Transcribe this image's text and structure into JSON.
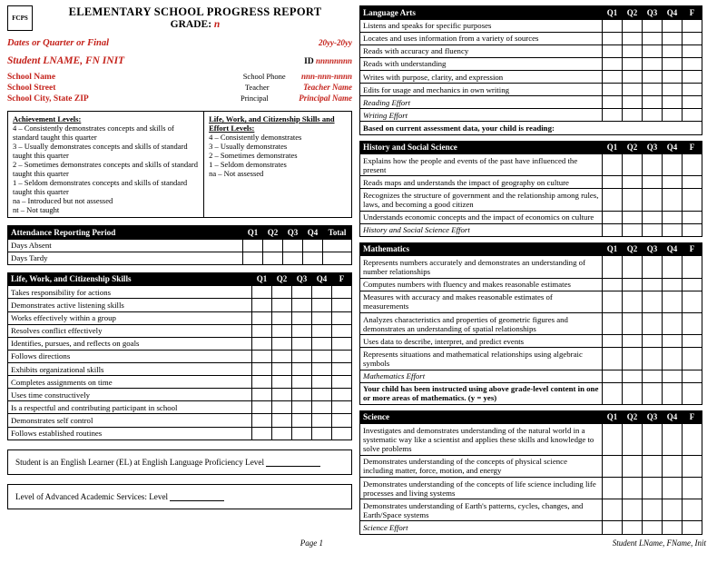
{
  "logo_text": "FCPS",
  "title_line1": "ELEMENTARY SCHOOL PROGRESS REPORT",
  "title_line2_prefix": "GRADE: ",
  "title_line2_grade": "n",
  "dates_label": "Dates or Quarter or Final",
  "year_range": "20yy-20yy",
  "student_name": "Student LNAME, FN INIT",
  "id_label": "ID",
  "id_value": "nnnnnnnn",
  "school": {
    "name": "School Name",
    "street": "School Street",
    "csz": "School City, State ZIP",
    "phone_label": "School Phone",
    "phone": "nnn-nnn-nnnn",
    "teacher_label": "Teacher",
    "teacher": "Teacher Name",
    "principal_label": "Principal",
    "principal": "Principal Name"
  },
  "achievement": {
    "heading": "Achievement Levels:",
    "l4": "4 – Consistently demonstrates concepts and skills of standard taught this quarter",
    "l3": "3 – Usually demonstrates concepts and skills of standard taught this quarter",
    "l2": "2 – Sometimes demonstrates concepts and skills of standard taught this quarter",
    "l1": "1 – Seldom demonstrates concepts and skills of standard taught this quarter",
    "na": "na – Introduced but not assessed",
    "nt": "nt – Not taught"
  },
  "effort": {
    "heading": "Life, Work, and Citizenship Skills and Effort Levels:",
    "l4": "4 – Consistently demonstrates",
    "l3": "3 – Usually demonstrates",
    "l2": "2 – Sometimes demonstrates",
    "l1": "1 – Seldom demonstrates",
    "na": "na – Not assessed"
  },
  "q_headers": {
    "q1": "Q1",
    "q2": "Q2",
    "q3": "Q3",
    "q4": "Q4",
    "f": "F",
    "total": "Total"
  },
  "attendance": {
    "title": "Attendance Reporting Period",
    "rows": [
      "Days Absent",
      "Days Tardy"
    ]
  },
  "citizenship": {
    "title": "Life, Work, and Citizenship Skills",
    "rows": [
      "Takes responsibility for actions",
      "Demonstrates active listening skills",
      "Works effectively within a group",
      "Resolves conflict effectively",
      "Identifies, pursues, and reflects on goals",
      "Follows directions",
      "Exhibits organizational skills",
      "Completes assignments on time",
      "Uses time constructively",
      "Is a respectful and contributing participant in school",
      "Demonstrates self control",
      "Follows established routines"
    ]
  },
  "el_note": "Student is an English Learner (EL) at English Language Proficiency Level ",
  "aas_note": "Level of Advanced Academic Services:  Level ",
  "la": {
    "title": "Language Arts",
    "rows": [
      "Listens and speaks for specific purposes",
      "Locates and uses information from a variety of sources",
      "Reads with accuracy and fluency",
      "Reads with understanding",
      "Writes with purpose, clarity, and expression",
      "Edits for usage and mechanics in own writing"
    ],
    "effort1": "Reading Effort",
    "effort2": "Writing Effort",
    "footer": "Based on current assessment data, your child is reading:"
  },
  "hss": {
    "title": "History and Social Science",
    "rows": [
      "Explains how the people and events of the past have influenced the present",
      "Reads maps and understands the impact of geography on culture",
      "Recognizes the structure of government and the relationship among rules, laws, and becoming a good citizen",
      "Understands economic concepts and the impact of economics on culture"
    ],
    "effort": "History and Social Science Effort"
  },
  "math": {
    "title": "Mathematics",
    "rows": [
      "Represents numbers accurately and demonstrates an understanding of number relationships",
      "Computes numbers with fluency and makes reasonable estimates",
      "Measures with accuracy and makes reasonable estimates of measurements",
      "Analyzes characteristics and properties of geometric figures and demonstrates an understanding of spatial relationships",
      "Uses data to describe, interpret, and predict events",
      "Represents situations and mathematical relationships using algebraic symbols"
    ],
    "effort": "Mathematics Effort",
    "footer": "Your child has been instructed using above grade-level content in one or more areas of mathematics. (y = yes)"
  },
  "sci": {
    "title": "Science",
    "rows": [
      "Investigates and demonstrates understanding of the natural world in a systematic way like a scientist and applies these skills and knowledge to solve problems",
      "Demonstrates understanding of the concepts of physical science including matter, force, motion, and energy",
      "Demonstrates understanding of the concepts of life science including life processes and living systems",
      "Demonstrates understanding of Earth's patterns, cycles, changes, and Earth/Space systems"
    ],
    "effort": "Science Effort"
  },
  "footer_page": "Page 1",
  "footer_student": "Student LName, FName, Init"
}
